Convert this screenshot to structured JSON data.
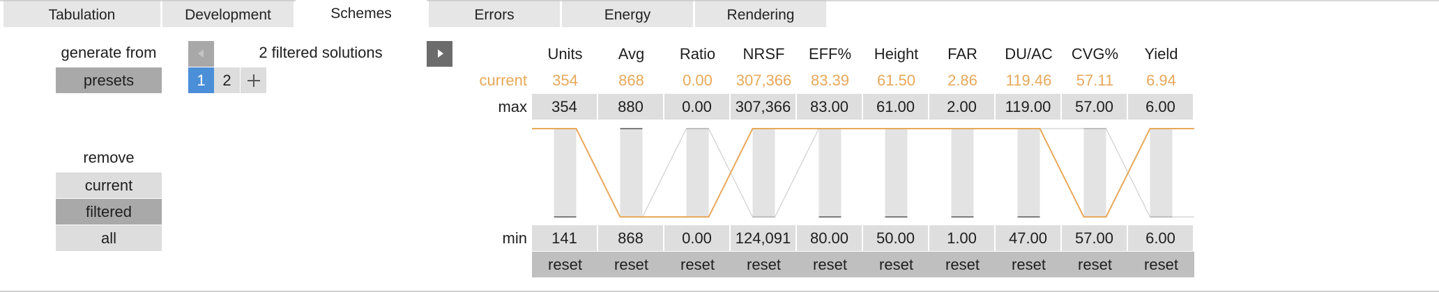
{
  "tabs": [
    {
      "label": "Tabulation",
      "active": false
    },
    {
      "label": "Development",
      "active": false
    },
    {
      "label": "Schemes",
      "active": true
    },
    {
      "label": "Errors",
      "active": false
    },
    {
      "label": "Energy",
      "active": false
    },
    {
      "label": "Rendering",
      "active": false
    }
  ],
  "generate": {
    "label": "generate from",
    "button": "presets"
  },
  "remove": {
    "label": "remove",
    "options": [
      "current",
      "filtered",
      "all"
    ],
    "selected": "filtered"
  },
  "solutions": {
    "text": "2 filtered solutions",
    "pages": [
      "1",
      "2"
    ],
    "current_page": "1"
  },
  "table": {
    "columns": [
      "Units",
      "Avg",
      "Ratio",
      "NRSF",
      "EFF%",
      "Height",
      "FAR",
      "DU/AC",
      "CVG%",
      "Yield"
    ],
    "current_label": "current",
    "current": [
      "354",
      "868",
      "0.00",
      "307,366",
      "83.39",
      "61.50",
      "2.86",
      "119.46",
      "57.11",
      "6.94"
    ],
    "max_label": "max",
    "max": [
      "354",
      "880",
      "0.00",
      "307,366",
      "83.00",
      "61.00",
      "2.00",
      "119.00",
      "57.00",
      "6.00"
    ],
    "min_label": "min",
    "min": [
      "141",
      "868",
      "0.00",
      "124,091",
      "80.00",
      "50.00",
      "1.00",
      "47.00",
      "57.00",
      "6.00"
    ],
    "reset_label": "reset",
    "current_norm": [
      1,
      0,
      0,
      1,
      1,
      1,
      1,
      1,
      0,
      1
    ],
    "filtered_norm": [
      1,
      0,
      1,
      0,
      1,
      1,
      1,
      1,
      1,
      0
    ]
  },
  "colors": {
    "current": "#e8a85a",
    "accent": "#4a8fd8",
    "filtered": "#cfcfcf"
  }
}
